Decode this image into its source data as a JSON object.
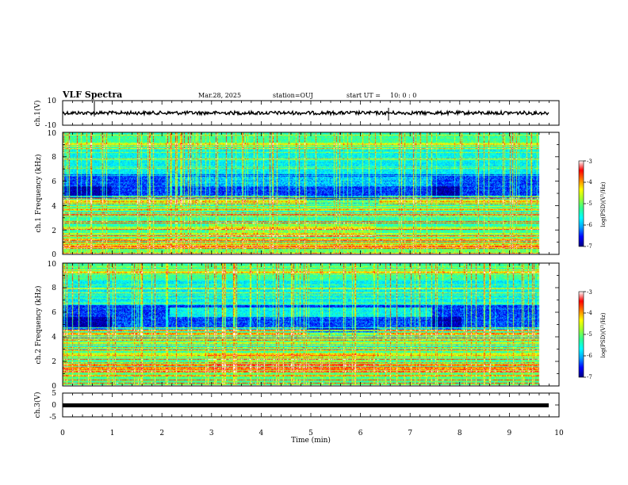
{
  "header": {
    "title": "VLF Spectra",
    "date": "Mar.28, 2025",
    "station": "station=OUJ",
    "start_label": "start  UT =",
    "start_time": "10: 0  : 0"
  },
  "chart_data": [
    {
      "type": "line",
      "ylabel": "ch.1(V)",
      "ylim": [
        -10,
        10
      ],
      "yticks": [
        "10",
        "-10"
      ],
      "xlim": [
        0,
        10
      ],
      "series": [
        {
          "values_mean": 0.0,
          "noise_amplitude_V": 1.2
        }
      ]
    },
    {
      "type": "heatmap",
      "ylabel": "ch.1 Frequency (kHz)",
      "ylim": [
        0,
        10
      ],
      "yticks": [
        "0",
        "2",
        "4",
        "6",
        "8",
        "10"
      ],
      "xlim": [
        0,
        10
      ],
      "colorbar": {
        "label": "log(PSD)(V²/Hz)",
        "range": [
          -7,
          -3
        ],
        "ticks": [
          "-3",
          "-4",
          "-5",
          "-6",
          "-7"
        ]
      },
      "features": {
        "band_6kHz": {
          "t_start_min": 2.2,
          "t_end_min": 7.6,
          "f_kHz": [
            5.6,
            6.4
          ]
        },
        "quiet_gap": {
          "t_start_min": 5.0,
          "t_end_min": 6.5,
          "f_kHz": [
            4.1,
            4.8
          ]
        }
      }
    },
    {
      "type": "heatmap",
      "ylabel": "ch.2 Frequency (kHz)",
      "ylim": [
        0,
        10
      ],
      "yticks": [
        "0",
        "2",
        "4",
        "6",
        "8",
        "10"
      ],
      "xlim": [
        0,
        10
      ],
      "colorbar": {
        "label": "log(PSD)(V²/Hz)",
        "range": [
          -7,
          -3
        ],
        "ticks": [
          "-3",
          "-4",
          "-5",
          "-6",
          "-7"
        ]
      },
      "features": {
        "band_6kHz": {
          "t_start_min": 2.2,
          "t_end_min": 7.6,
          "f_kHz": [
            5.6,
            6.4
          ]
        },
        "quiet_gap": {
          "t_start_min": 5.0,
          "t_end_min": 6.5,
          "f_kHz": [
            4.1,
            4.8
          ]
        }
      }
    },
    {
      "type": "line",
      "ylabel": "ch.3(V)",
      "ylim": [
        -5,
        5
      ],
      "yticks": [
        "5",
        "0",
        "-5"
      ],
      "xlim": [
        0,
        10
      ],
      "series": [
        {
          "values_mean": -1.0
        }
      ]
    }
  ],
  "xaxis": {
    "label": "Time  (min)",
    "ticks": [
      "0",
      "1",
      "2",
      "3",
      "4",
      "5",
      "6",
      "7",
      "8",
      "9",
      "10"
    ],
    "data_end_min": 9.8
  },
  "colors": {
    "cmap": [
      "#000080",
      "#0000ff",
      "#00a0ff",
      "#00ffff",
      "#30ff90",
      "#a0ff30",
      "#ffff00",
      "#ff8000",
      "#ff0000",
      "#ffffff"
    ]
  }
}
